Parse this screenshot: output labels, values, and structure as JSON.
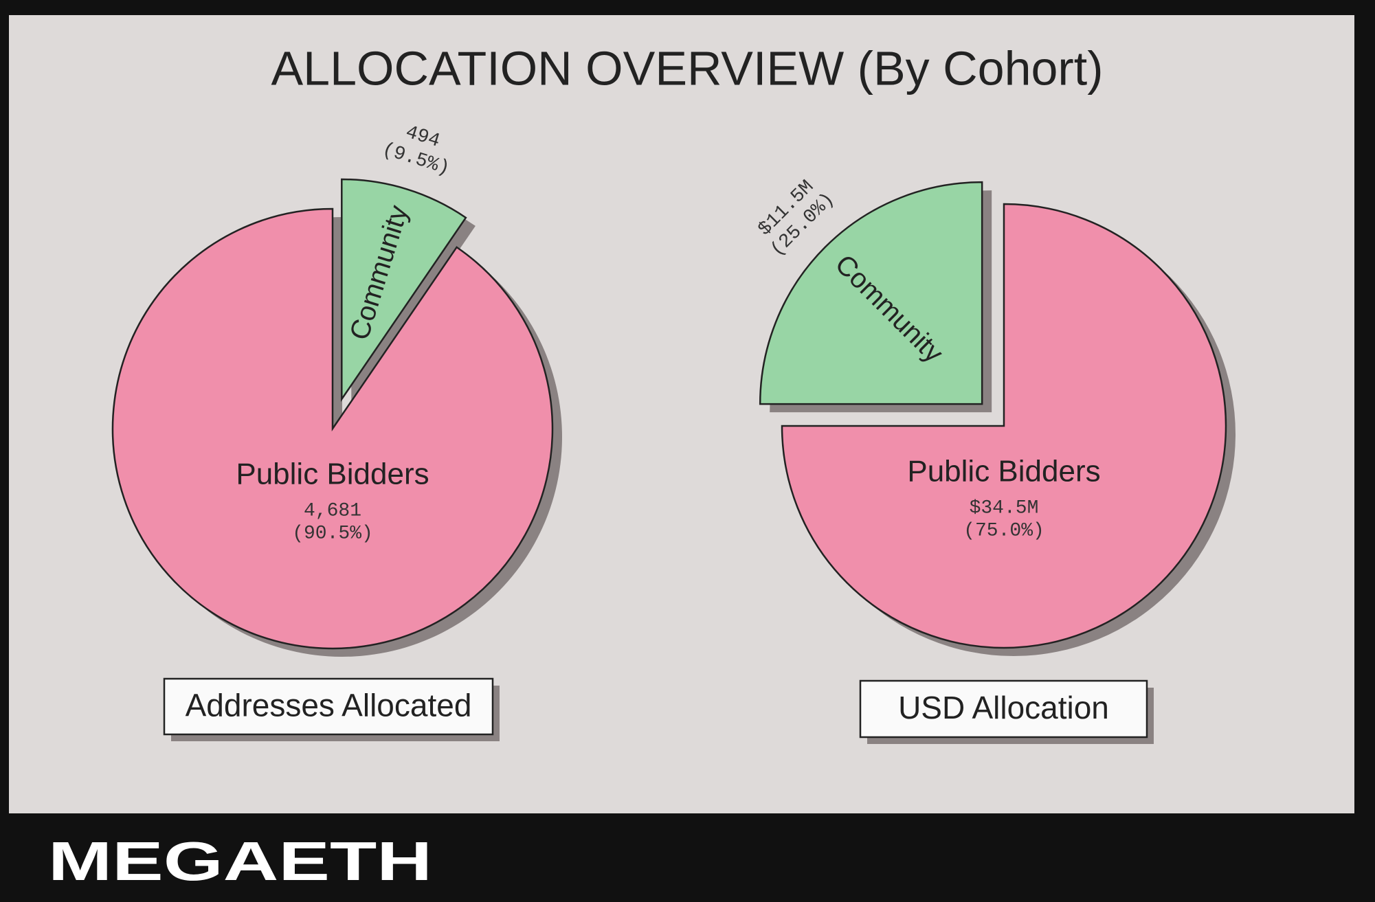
{
  "title": "ALLOCATION OVERVIEW (By Cohort)",
  "brand": "MEGAETH",
  "chart_data": [
    {
      "type": "pie",
      "title": "Addresses Allocated",
      "categories": [
        "Public Bidders",
        "Community"
      ],
      "values": [
        4681,
        494
      ],
      "value_labels": [
        "4,681",
        "494"
      ],
      "percent_labels": [
        "(90.5%)",
        "(9.5%)"
      ],
      "colors": [
        "#f08fab",
        "#98d5a5"
      ]
    },
    {
      "type": "pie",
      "title": "USD Allocation",
      "categories": [
        "Public Bidders",
        "Community"
      ],
      "values": [
        34500000,
        11500000
      ],
      "value_labels": [
        "$34.5M",
        "$11.5M"
      ],
      "percent_labels": [
        "(75.0%)",
        "(25.0%)"
      ],
      "colors": [
        "#f08fab",
        "#98d5a5"
      ]
    }
  ]
}
